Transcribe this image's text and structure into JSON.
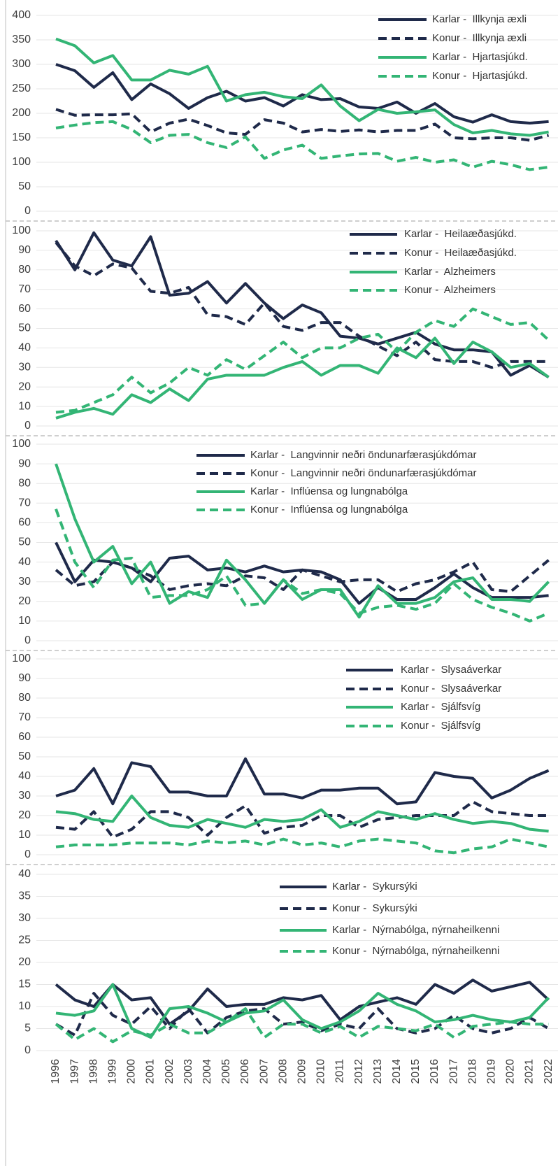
{
  "chart_data": [
    {
      "type": "line",
      "ylim": [
        0,
        400
      ],
      "yticks": [
        0,
        50,
        100,
        150,
        200,
        250,
        300,
        350,
        400
      ],
      "grid": true,
      "series": [
        {
          "name": "Karlar -  Illkynja æxli",
          "color": "#1f2a4a",
          "dash": false,
          "values": [
            300,
            287,
            253,
            283,
            228,
            260,
            240,
            210,
            232,
            245,
            225,
            232,
            215,
            238,
            228,
            230,
            213,
            210,
            223,
            200,
            220,
            193,
            182,
            197,
            183,
            180,
            183
          ]
        },
        {
          "name": "Konur -  Illkynja æxli",
          "color": "#1f2a4a",
          "dash": true,
          "values": [
            208,
            196,
            197,
            197,
            199,
            162,
            180,
            188,
            175,
            160,
            157,
            187,
            180,
            162,
            167,
            163,
            166,
            162,
            165,
            165,
            178,
            150,
            148,
            150,
            150,
            145,
            155
          ]
        },
        {
          "name": "Karlar -  Hjartasjúkd.",
          "color": "#33b575",
          "dash": false,
          "values": [
            352,
            338,
            303,
            318,
            268,
            268,
            288,
            280,
            296,
            225,
            238,
            243,
            234,
            230,
            258,
            215,
            185,
            208,
            200,
            203,
            207,
            177,
            160,
            165,
            158,
            155,
            162
          ]
        },
        {
          "name": "Konur -  Hjartasjúkd.",
          "color": "#33b575",
          "dash": true,
          "values": [
            170,
            176,
            181,
            183,
            167,
            140,
            155,
            157,
            140,
            130,
            152,
            108,
            125,
            135,
            108,
            113,
            117,
            118,
            102,
            110,
            100,
            105,
            90,
            102,
            95,
            85,
            90
          ]
        }
      ]
    },
    {
      "type": "line",
      "ylim": [
        0,
        100
      ],
      "yticks": [
        0,
        10,
        20,
        30,
        40,
        50,
        60,
        70,
        80,
        90,
        100
      ],
      "grid": true,
      "series": [
        {
          "name": "Karlar -  Heilaæðasjúkd.",
          "color": "#1f2a4a",
          "dash": false,
          "values": [
            95,
            80,
            99,
            85,
            82,
            97,
            67,
            68,
            74,
            63,
            73,
            63,
            55,
            62,
            58,
            46,
            45,
            42,
            45,
            48,
            42,
            39,
            39,
            38,
            26,
            31,
            25
          ]
        },
        {
          "name": "Konur -  Heilaæðasjúkd.",
          "color": "#1f2a4a",
          "dash": true,
          "values": [
            94,
            82,
            77,
            83,
            81,
            69,
            68,
            71,
            57,
            56,
            52,
            63,
            51,
            49,
            53,
            53,
            46,
            41,
            36,
            43,
            34,
            33,
            33,
            30,
            33,
            33,
            33
          ]
        },
        {
          "name": "Karlar -  Alzheimers",
          "color": "#33b575",
          "dash": false,
          "values": [
            4,
            7,
            9,
            6,
            16,
            12,
            19,
            13,
            24,
            26,
            26,
            26,
            30,
            33,
            26,
            31,
            31,
            27,
            40,
            35,
            45,
            32,
            43,
            38,
            30,
            32,
            25
          ]
        },
        {
          "name": "Konur -  Alzheimers",
          "color": "#33b575",
          "dash": true,
          "values": [
            7,
            8,
            12,
            16,
            25,
            17,
            22,
            30,
            26,
            34,
            29,
            36,
            43,
            35,
            40,
            40,
            45,
            47,
            38,
            48,
            54,
            51,
            60,
            56,
            52,
            53,
            44
          ]
        }
      ]
    },
    {
      "type": "line",
      "ylim": [
        0,
        100
      ],
      "yticks": [
        0,
        10,
        20,
        30,
        40,
        50,
        60,
        70,
        80,
        90,
        100
      ],
      "grid": true,
      "series": [
        {
          "name": "Karlar -  Langvinnir neðri öndunarfærasjúkdómar",
          "color": "#1f2a4a",
          "dash": false,
          "values": [
            50,
            30,
            41,
            40,
            37,
            30,
            42,
            43,
            36,
            37,
            35,
            38,
            35,
            36,
            35,
            31,
            19,
            27,
            21,
            21,
            27,
            34,
            27,
            22,
            22,
            22,
            23
          ]
        },
        {
          "name": "Konur -  Langvinnir neðri öndunarfærasjúkdómar",
          "color": "#1f2a4a",
          "dash": true,
          "values": [
            36,
            28,
            30,
            40,
            37,
            33,
            26,
            28,
            29,
            28,
            33,
            32,
            26,
            36,
            33,
            30,
            31,
            31,
            25,
            29,
            31,
            35,
            40,
            26,
            25,
            33,
            41
          ]
        },
        {
          "name": "Karlar -  Inflúensa og lungnabólga",
          "color": "#33b575",
          "dash": false,
          "values": [
            90,
            62,
            40,
            48,
            29,
            40,
            19,
            25,
            22,
            41,
            31,
            19,
            31,
            21,
            26,
            26,
            12,
            28,
            19,
            19,
            22,
            30,
            32,
            21,
            21,
            20,
            30
          ]
        },
        {
          "name": "Konur -  Inflúensa og lungnabólga",
          "color": "#33b575",
          "dash": true,
          "values": [
            67,
            40,
            27,
            41,
            42,
            22,
            23,
            23,
            26,
            33,
            18,
            19,
            31,
            24,
            26,
            24,
            14,
            17,
            18,
            16,
            19,
            29,
            21,
            17,
            14,
            10,
            14
          ]
        }
      ]
    },
    {
      "type": "line",
      "ylim": [
        0,
        100
      ],
      "yticks": [
        0,
        10,
        20,
        30,
        40,
        50,
        60,
        70,
        80,
        90,
        100
      ],
      "grid": true,
      "series": [
        {
          "name": "Karlar -  Slysaáverkar",
          "color": "#1f2a4a",
          "dash": false,
          "values": [
            30,
            33,
            44,
            26,
            47,
            45,
            32,
            32,
            30,
            30,
            49,
            31,
            31,
            29,
            33,
            33,
            34,
            34,
            26,
            27,
            42,
            40,
            39,
            29,
            33,
            39,
            43
          ]
        },
        {
          "name": "Konur -  Slysaáverkar",
          "color": "#1f2a4a",
          "dash": true,
          "values": [
            14,
            13,
            22,
            9,
            13,
            22,
            22,
            19,
            10,
            19,
            25,
            11,
            14,
            15,
            20,
            20,
            14,
            18,
            19,
            20,
            20,
            20,
            27,
            22,
            21,
            20,
            20
          ]
        },
        {
          "name": "Karlar -  Sjálfsvíg",
          "color": "#33b575",
          "dash": false,
          "values": [
            22,
            21,
            18,
            17,
            30,
            19,
            15,
            14,
            18,
            16,
            14,
            18,
            17,
            18,
            23,
            14,
            17,
            22,
            20,
            18,
            21,
            18,
            16,
            17,
            16,
            13,
            12
          ]
        },
        {
          "name": "Konur -  Sjálfsvíg",
          "color": "#33b575",
          "dash": true,
          "values": [
            4,
            5,
            5,
            5,
            6,
            6,
            6,
            5,
            7,
            6,
            7,
            5,
            8,
            5,
            6,
            4,
            7,
            8,
            7,
            6,
            2,
            1,
            3,
            4,
            8,
            6,
            4
          ]
        }
      ]
    },
    {
      "type": "line",
      "ylim": [
        0,
        40
      ],
      "yticks": [
        0,
        5,
        10,
        15,
        20,
        25,
        30,
        35,
        40
      ],
      "grid": true,
      "categories": [
        "1996",
        "1997",
        "1998",
        "1999",
        "2000",
        "2001",
        "2002",
        "2003",
        "2004",
        "2005",
        "2006",
        "2007",
        "2008",
        "2009",
        "2010",
        "2011",
        "2012",
        "2013",
        "2014",
        "2015",
        "2016",
        "2017",
        "2018",
        "2019",
        "2020",
        "2021",
        "2022"
      ],
      "series": [
        {
          "name": "Karlar -  Sykursýki",
          "color": "#1f2a4a",
          "dash": false,
          "values": [
            15,
            11.5,
            10,
            15,
            11.5,
            12,
            6,
            9,
            14,
            10,
            10.5,
            10.5,
            12,
            11.5,
            12.5,
            7,
            10,
            11,
            12,
            10.5,
            15,
            13,
            16,
            13.5,
            14.5,
            15.5,
            11.5
          ]
        },
        {
          "name": "Konur -  Sykursýki",
          "color": "#1f2a4a",
          "dash": true,
          "values": [
            6,
            3.5,
            13,
            8,
            6,
            10,
            5,
            9.5,
            4,
            7.5,
            9,
            9.5,
            6,
            6.5,
            4.5,
            6,
            5,
            9.5,
            5,
            4,
            5,
            8,
            5,
            4,
            5,
            7.5,
            5
          ]
        },
        {
          "name": "Karlar -  Nýrnabólga, nýrnaheilkenni",
          "color": "#33b575",
          "dash": false,
          "values": [
            8.5,
            8,
            9,
            15,
            5,
            3,
            9.5,
            10,
            8.5,
            6.5,
            8.5,
            9,
            11.5,
            7,
            5,
            6.5,
            9,
            13,
            10.5,
            9,
            6.5,
            7,
            8,
            7,
            6.5,
            7.5,
            12
          ]
        },
        {
          "name": "Konur -  Nýrnabólga, nýrnaheilkenni",
          "color": "#33b575",
          "dash": true,
          "values": [
            6,
            2.5,
            5,
            2,
            4.5,
            3.5,
            6,
            4,
            4,
            6.5,
            9.5,
            3,
            6,
            6,
            4,
            5.5,
            3,
            5.5,
            5,
            4.5,
            6,
            3,
            5.5,
            6,
            6.5,
            6,
            6
          ]
        }
      ]
    }
  ]
}
